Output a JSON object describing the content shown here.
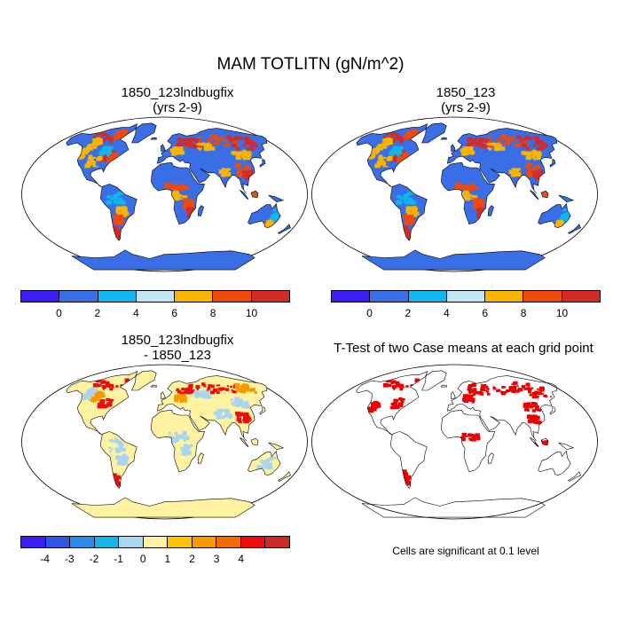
{
  "main_title": "MAM TOTLITN (gN/m^2)",
  "panels": [
    {
      "id": "case1",
      "title_line1": "1850_123lndbugfix",
      "title_line2": "(yrs 2-9)",
      "kind": "case"
    },
    {
      "id": "case2",
      "title_line1": "1850_123",
      "title_line2": "(yrs 2-9)",
      "kind": "case"
    },
    {
      "id": "diff",
      "title_line1": "1850_123lndbugfix",
      "title_line2": "- 1850_123",
      "kind": "diff"
    },
    {
      "id": "ttest",
      "title_line1": "T-Test of two Case means at each grid point",
      "title_line2": "",
      "kind": "ttest"
    }
  ],
  "colorbar_case": {
    "colors": [
      "#3b1ff2",
      "#3a6ee6",
      "#12b6ee",
      "#bfe6f2",
      "#f7b400",
      "#f04a0a",
      "#d42a26"
    ],
    "labels": [
      "0",
      "2",
      "4",
      "6",
      "8",
      "10"
    ]
  },
  "colorbar_diff": {
    "colors": [
      "#3b1ff2",
      "#3158e4",
      "#2a8ce8",
      "#17b3ec",
      "#a9d5ee",
      "#fff2a0",
      "#fbc300",
      "#f79a00",
      "#f36a00",
      "#ee0c0c",
      "#cc2a26"
    ],
    "labels": [
      "-4",
      "-3",
      "-2",
      "-1",
      "0",
      "1",
      "2",
      "3",
      "4"
    ]
  },
  "ttest_note": "Cells are significant at 0.1 level",
  "map_colors": {
    "case_ocean": "#ffffff",
    "case_land": "#3a6ee6",
    "case_mid": "#12b6ee",
    "case_high": "#f04a0a",
    "case_hot": "#d42a26",
    "case_warm": "#f7b400",
    "diff_land": "#fff2a0",
    "diff_neg": "#a9d5ee",
    "diff_pos": "#ee0c0c",
    "diff_warm": "#f79a00",
    "ttest_sig": "#ee0000"
  }
}
